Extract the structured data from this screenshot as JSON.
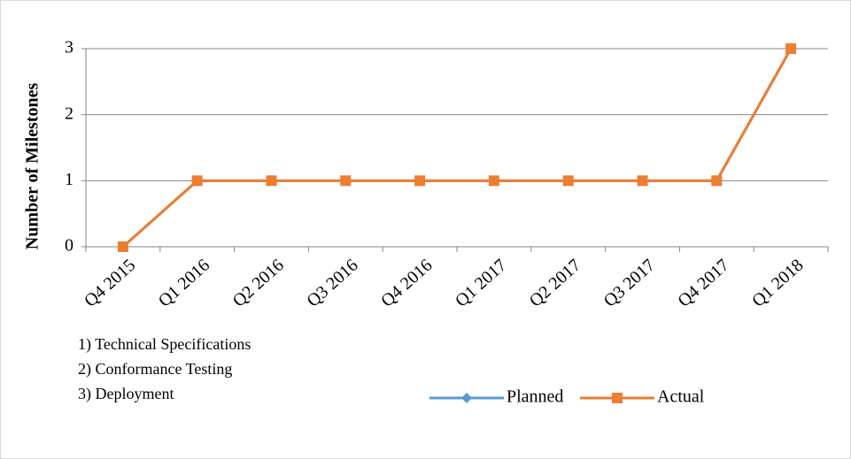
{
  "chart_data": {
    "type": "line",
    "y_label": "Number of Milestones",
    "categories": [
      "Q4 2015",
      "Q1 2016",
      "Q2 2016",
      "Q3 2016",
      "Q4 2016",
      "Q1 2017",
      "Q2 2017",
      "Q3 2017",
      "Q4 2017",
      "Q1 2018"
    ],
    "series": [
      {
        "name": "Planned",
        "color": "#5b9bd5",
        "marker": "diamond",
        "values": [
          0,
          1,
          1,
          1,
          1,
          1,
          1,
          1,
          1,
          3
        ]
      },
      {
        "name": "Actual",
        "color": "#ed7d31",
        "marker": "square",
        "values": [
          0,
          1,
          1,
          1,
          1,
          1,
          1,
          1,
          1,
          3
        ]
      }
    ],
    "ylim": [
      0,
      3
    ],
    "yticks": [
      0,
      1,
      2,
      3
    ],
    "grid": true,
    "legend": "bottom",
    "annotations": [
      "1) Technical Specifications",
      "2) Conformance Testing",
      "3) Deployment"
    ]
  }
}
